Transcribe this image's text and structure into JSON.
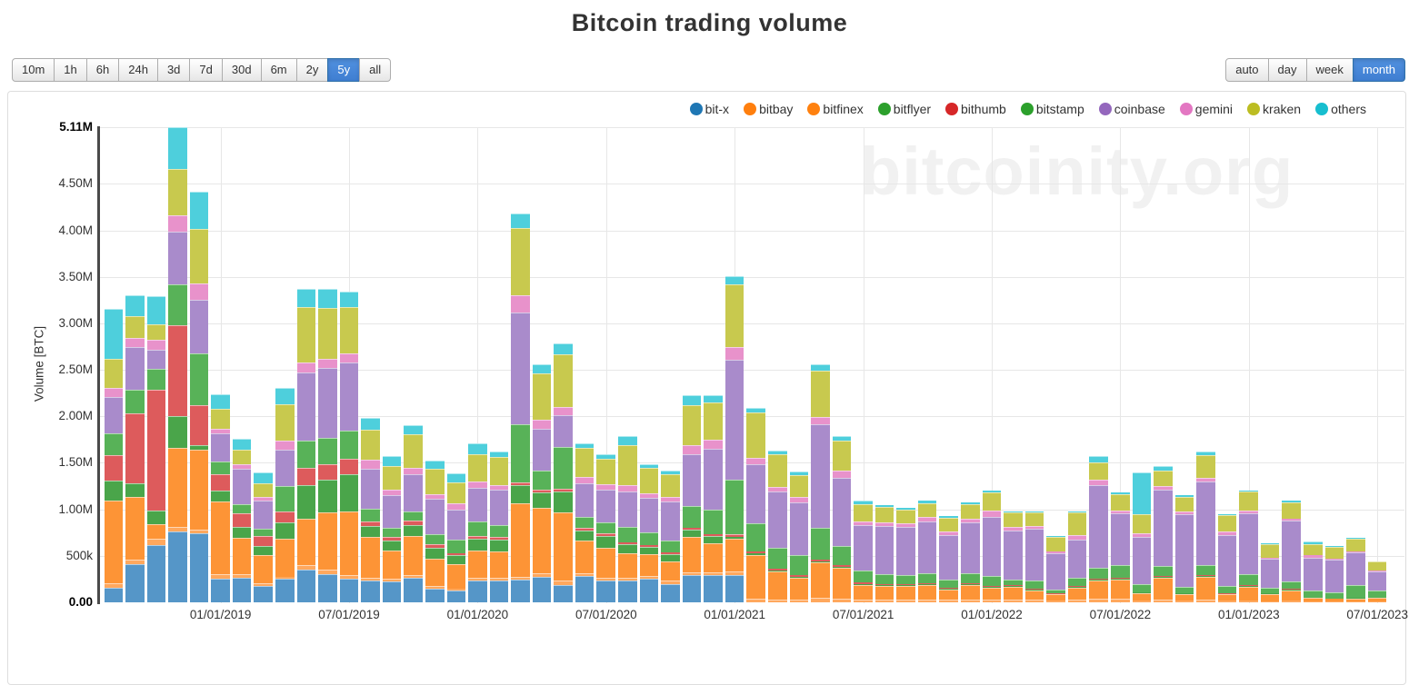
{
  "title": "Bitcoin trading volume",
  "watermark": "bitcoinity.org",
  "toolbar": {
    "range_buttons": [
      "10m",
      "1h",
      "6h",
      "24h",
      "3d",
      "7d",
      "30d",
      "6m",
      "2y",
      "5y",
      "all"
    ],
    "range_active": "5y",
    "granularity_buttons": [
      "auto",
      "day",
      "week",
      "month"
    ],
    "granularity_active": "month",
    "active_color": "#428bca"
  },
  "chart_data": {
    "type": "bar",
    "subtype": "stacked",
    "title": "Bitcoin trading volume",
    "xlabel": "",
    "ylabel": "Volume [BTC]",
    "ylim": [
      0,
      5.11
    ],
    "grid": true,
    "legend_position": "top-right",
    "y_ticks": [
      {
        "value": 0,
        "label": "0.00",
        "bold": true
      },
      {
        "value": 0.5,
        "label": "500k",
        "bold": false
      },
      {
        "value": 1.0,
        "label": "1.00M",
        "bold": false
      },
      {
        "value": 1.5,
        "label": "1.50M",
        "bold": false
      },
      {
        "value": 2.0,
        "label": "2.00M",
        "bold": false
      },
      {
        "value": 2.5,
        "label": "2.50M",
        "bold": false
      },
      {
        "value": 3.0,
        "label": "3.00M",
        "bold": false
      },
      {
        "value": 3.5,
        "label": "3.50M",
        "bold": false
      },
      {
        "value": 4.0,
        "label": "4.00M",
        "bold": false
      },
      {
        "value": 4.5,
        "label": "4.50M",
        "bold": false
      },
      {
        "value": 5.11,
        "label": "5.11M",
        "bold": true
      }
    ],
    "categories": [
      "2018-08",
      "2018-09",
      "2018-10",
      "2018-11",
      "2018-12",
      "2019-01",
      "2019-02",
      "2019-03",
      "2019-04",
      "2019-05",
      "2019-06",
      "2019-07",
      "2019-08",
      "2019-09",
      "2019-10",
      "2019-11",
      "2019-12",
      "2020-01",
      "2020-02",
      "2020-03",
      "2020-04",
      "2020-05",
      "2020-06",
      "2020-07",
      "2020-08",
      "2020-09",
      "2020-10",
      "2020-11",
      "2020-12",
      "2021-01",
      "2021-02",
      "2021-03",
      "2021-04",
      "2021-05",
      "2021-06",
      "2021-07",
      "2021-08",
      "2021-09",
      "2021-10",
      "2021-11",
      "2021-12",
      "2022-01",
      "2022-02",
      "2022-03",
      "2022-04",
      "2022-05",
      "2022-06",
      "2022-07",
      "2022-08",
      "2022-09",
      "2022-10",
      "2022-11",
      "2022-12",
      "2023-01",
      "2023-02",
      "2023-03",
      "2023-04",
      "2023-05",
      "2023-06",
      "2023-07"
    ],
    "x_ticks": [
      {
        "index": 5,
        "label": "01/01/2019"
      },
      {
        "index": 11,
        "label": "07/01/2019"
      },
      {
        "index": 17,
        "label": "01/01/2020"
      },
      {
        "index": 23,
        "label": "07/01/2020"
      },
      {
        "index": 29,
        "label": "01/01/2021"
      },
      {
        "index": 35,
        "label": "07/01/2021"
      },
      {
        "index": 41,
        "label": "01/01/2022"
      },
      {
        "index": 47,
        "label": "07/01/2022"
      },
      {
        "index": 53,
        "label": "01/01/2023"
      },
      {
        "index": 59,
        "label": "07/01/2023"
      }
    ],
    "series": [
      {
        "name": "bit-x",
        "legend_color": "#1f77b4",
        "bar_color": "#5596c8",
        "values": [
          0.16,
          0.41,
          0.62,
          0.76,
          0.74,
          0.25,
          0.26,
          0.18,
          0.25,
          0.35,
          0.3,
          0.25,
          0.23,
          0.22,
          0.26,
          0.15,
          0.13,
          0.23,
          0.23,
          0.24,
          0.27,
          0.19,
          0.28,
          0.23,
          0.23,
          0.25,
          0.2,
          0.29,
          0.29,
          0.29,
          0,
          0,
          0,
          0,
          0,
          0,
          0,
          0,
          0,
          0,
          0,
          0,
          0,
          0,
          0,
          0,
          0,
          0,
          0,
          0,
          0,
          0,
          0,
          0,
          0,
          0,
          0,
          0,
          0,
          0
        ]
      },
      {
        "name": "bitbay",
        "legend_color": "#ff7f0e",
        "bar_color": "#ffa85e",
        "values": [
          0.05,
          0.05,
          0.06,
          0.05,
          0.04,
          0.05,
          0.04,
          0.03,
          0.02,
          0.05,
          0.05,
          0.04,
          0.03,
          0.03,
          0.03,
          0.03,
          0.02,
          0.03,
          0.03,
          0.03,
          0.04,
          0.04,
          0.03,
          0.03,
          0.03,
          0.03,
          0.03,
          0.03,
          0.03,
          0.04,
          0.04,
          0.03,
          0.03,
          0.05,
          0.04,
          0.03,
          0.03,
          0.03,
          0.03,
          0.03,
          0.03,
          0.03,
          0.03,
          0.03,
          0.02,
          0.03,
          0.04,
          0.04,
          0.02,
          0.03,
          0.02,
          0.03,
          0.02,
          0.02,
          0.01,
          0.02,
          0.01,
          0.01,
          0.01,
          0.01
        ]
      },
      {
        "name": "bitfinex",
        "legend_color": "#ff810f",
        "bar_color": "#fd9436",
        "values": [
          0.88,
          0.67,
          0.16,
          0.85,
          0.86,
          0.78,
          0.39,
          0.3,
          0.41,
          0.5,
          0.62,
          0.69,
          0.44,
          0.31,
          0.42,
          0.29,
          0.26,
          0.3,
          0.29,
          0.8,
          0.71,
          0.74,
          0.35,
          0.33,
          0.27,
          0.24,
          0.21,
          0.38,
          0.32,
          0.35,
          0.47,
          0.3,
          0.23,
          0.38,
          0.33,
          0.16,
          0.15,
          0.15,
          0.16,
          0.11,
          0.16,
          0.13,
          0.14,
          0.1,
          0.065,
          0.13,
          0.19,
          0.2,
          0.08,
          0.23,
          0.07,
          0.24,
          0.065,
          0.15,
          0.08,
          0.11,
          0.035,
          0.025,
          0.03,
          0.035
        ]
      },
      {
        "name": "bitflyer",
        "legend_color": "#2ca02c",
        "bar_color": "#4aa54a",
        "values": [
          0.22,
          0.15,
          0.15,
          0.34,
          0.05,
          0.12,
          0.12,
          0.1,
          0.18,
          0.36,
          0.35,
          0.4,
          0.12,
          0.1,
          0.12,
          0.12,
          0.1,
          0.12,
          0.12,
          0.19,
          0.16,
          0.22,
          0.11,
          0.12,
          0.1,
          0.08,
          0.08,
          0.08,
          0.07,
          0.02,
          0.02,
          0.01,
          0.01,
          0.01,
          0.01,
          0.01,
          0.01,
          0.01,
          0.01,
          0.01,
          0.01,
          0.01,
          0.01,
          0.01,
          0.005,
          0.01,
          0.01,
          0.01,
          0.005,
          0.01,
          0.005,
          0.01,
          0.005,
          0.005,
          0.004,
          0.005,
          0.004,
          0.004,
          0.005,
          0.004
        ]
      },
      {
        "name": "bithumb",
        "legend_color": "#d62728",
        "bar_color": "#dd5b5c",
        "values": [
          0.27,
          0.75,
          1.3,
          0.98,
          0.43,
          0.18,
          0.15,
          0.1,
          0.12,
          0.19,
          0.17,
          0.16,
          0.05,
          0.04,
          0.05,
          0.04,
          0.02,
          0.03,
          0.03,
          0.03,
          0.03,
          0.03,
          0.03,
          0.03,
          0.02,
          0.02,
          0.02,
          0.02,
          0.02,
          0.03,
          0.02,
          0.02,
          0.02,
          0.02,
          0.02,
          0.02,
          0.01,
          0.01,
          0.01,
          0.01,
          0.01,
          0.01,
          0.01,
          0.01,
          0.005,
          0.01,
          0.015,
          0.015,
          0.005,
          0.01,
          0.005,
          0.01,
          0.005,
          0.01,
          0.005,
          0.01,
          0.005,
          0.004,
          0.005,
          0.004
        ]
      },
      {
        "name": "bitstamp",
        "legend_color": "#2ca02c",
        "bar_color": "#58b258",
        "values": [
          0.24,
          0.26,
          0.22,
          0.44,
          0.56,
          0.13,
          0.1,
          0.08,
          0.27,
          0.29,
          0.28,
          0.31,
          0.14,
          0.1,
          0.1,
          0.1,
          0.14,
          0.16,
          0.13,
          0.63,
          0.21,
          0.45,
          0.12,
          0.12,
          0.16,
          0.13,
          0.12,
          0.24,
          0.27,
          0.59,
          0.3,
          0.23,
          0.22,
          0.34,
          0.21,
          0.12,
          0.1,
          0.09,
          0.1,
          0.08,
          0.1,
          0.1,
          0.05,
          0.08,
          0.04,
          0.08,
          0.12,
          0.14,
          0.09,
          0.11,
          0.07,
          0.11,
          0.08,
          0.12,
          0.06,
          0.08,
          0.07,
          0.065,
          0.14,
          0.07
        ]
      },
      {
        "name": "coinbase",
        "legend_color": "#9467bd",
        "bar_color": "#a98bcb",
        "values": [
          0.39,
          0.46,
          0.21,
          0.57,
          0.57,
          0.31,
          0.38,
          0.3,
          0.39,
          0.73,
          0.75,
          0.73,
          0.43,
          0.35,
          0.4,
          0.38,
          0.33,
          0.36,
          0.38,
          1.2,
          0.45,
          0.34,
          0.36,
          0.35,
          0.38,
          0.37,
          0.42,
          0.55,
          0.65,
          1.29,
          0.64,
          0.6,
          0.57,
          1.12,
          0.73,
          0.49,
          0.52,
          0.52,
          0.56,
          0.48,
          0.55,
          0.64,
          0.53,
          0.56,
          0.39,
          0.41,
          0.89,
          0.55,
          0.5,
          0.82,
          0.78,
          0.9,
          0.55,
          0.65,
          0.31,
          0.65,
          0.36,
          0.35,
          0.345,
          0.205
        ]
      },
      {
        "name": "gemini",
        "legend_color": "#e377c2",
        "bar_color": "#e892cb",
        "values": [
          0.1,
          0.09,
          0.1,
          0.17,
          0.18,
          0.05,
          0.05,
          0.04,
          0.1,
          0.11,
          0.1,
          0.1,
          0.09,
          0.06,
          0.07,
          0.05,
          0.07,
          0.07,
          0.05,
          0.18,
          0.09,
          0.09,
          0.07,
          0.06,
          0.07,
          0.05,
          0.05,
          0.1,
          0.1,
          0.14,
          0.06,
          0.05,
          0.05,
          0.07,
          0.08,
          0.04,
          0.04,
          0.04,
          0.05,
          0.04,
          0.04,
          0.07,
          0.04,
          0.03,
          0.02,
          0.05,
          0.05,
          0.03,
          0.04,
          0.04,
          0.03,
          0.04,
          0.04,
          0.035,
          0.01,
          0.025,
          0.02,
          0.015,
          0.01,
          0.01
        ]
      },
      {
        "name": "kraken",
        "legend_color": "#bcbd22",
        "bar_color": "#c8c94e",
        "values": [
          0.31,
          0.24,
          0.17,
          0.5,
          0.59,
          0.21,
          0.15,
          0.15,
          0.39,
          0.6,
          0.55,
          0.5,
          0.33,
          0.26,
          0.36,
          0.28,
          0.22,
          0.29,
          0.3,
          0.73,
          0.5,
          0.57,
          0.31,
          0.27,
          0.43,
          0.28,
          0.25,
          0.43,
          0.4,
          0.67,
          0.49,
          0.35,
          0.24,
          0.5,
          0.32,
          0.19,
          0.17,
          0.15,
          0.15,
          0.15,
          0.16,
          0.19,
          0.16,
          0.15,
          0.16,
          0.25,
          0.19,
          0.18,
          0.21,
          0.17,
          0.15,
          0.24,
          0.17,
          0.2,
          0.15,
          0.18,
          0.12,
          0.12,
          0.14,
          0.1
        ]
      },
      {
        "name": "others",
        "legend_color": "#17becf",
        "bar_color": "#4ecfdc",
        "values": [
          0.54,
          0.22,
          0.3,
          0.45,
          0.4,
          0.16,
          0.12,
          0.12,
          0.18,
          0.19,
          0.2,
          0.16,
          0.12,
          0.1,
          0.1,
          0.08,
          0.1,
          0.12,
          0.06,
          0.15,
          0.1,
          0.12,
          0.05,
          0.05,
          0.1,
          0.04,
          0.04,
          0.11,
          0.08,
          0.09,
          0.05,
          0.04,
          0.04,
          0.07,
          0.05,
          0.03,
          0.02,
          0.02,
          0.02,
          0.02,
          0.02,
          0.02,
          0.01,
          0.01,
          0.01,
          0.01,
          0.07,
          0.02,
          0.45,
          0.05,
          0.02,
          0.04,
          0.01,
          0.015,
          0.01,
          0.015,
          0.03,
          0.01,
          0.01,
          0.005
        ]
      }
    ]
  }
}
